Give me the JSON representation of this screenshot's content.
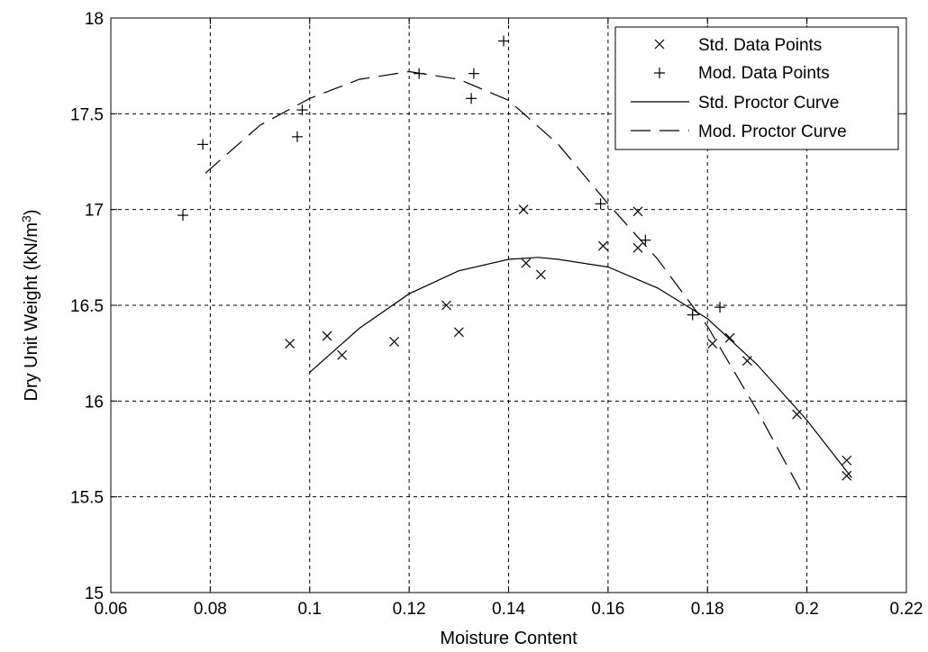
{
  "chart_data": {
    "type": "scatter",
    "xlabel": "Moisture Content",
    "ylabel": "Dry Unit Weight (kN/m",
    "ylabel_sup": "3",
    "ylabel_end": ")",
    "xlim": [
      0.06,
      0.22
    ],
    "ylim": [
      15,
      18
    ],
    "x_ticks": [
      0.06,
      0.08,
      0.1,
      0.12,
      0.14,
      0.16,
      0.18,
      0.2,
      0.22
    ],
    "x_tick_labels": [
      "0.06",
      "0.08",
      "0.1",
      "0.12",
      "0.14",
      "0.16",
      "0.18",
      "0.2",
      "0.22"
    ],
    "y_ticks": [
      15,
      15.5,
      16,
      16.5,
      17,
      17.5,
      18
    ],
    "y_tick_labels": [
      "15",
      "15.5",
      "16",
      "16.5",
      "17",
      "17.5",
      "18"
    ],
    "grid": true,
    "legend_position": "top-right",
    "series": [
      {
        "name": "Std. Data Points",
        "kind": "x-marker",
        "x": [
          0.096,
          0.1035,
          0.1065,
          0.117,
          0.1275,
          0.13,
          0.143,
          0.1435,
          0.1465,
          0.159,
          0.166,
          0.166,
          0.181,
          0.1845,
          0.188,
          0.198,
          0.208,
          0.208
        ],
        "y": [
          16.3,
          16.34,
          16.24,
          16.31,
          16.5,
          16.36,
          17.0,
          16.72,
          16.66,
          16.81,
          16.8,
          16.99,
          16.3,
          16.33,
          16.21,
          15.93,
          15.69,
          15.61
        ]
      },
      {
        "name": "Mod. Data Points",
        "kind": "plus-marker",
        "x": [
          0.0745,
          0.0785,
          0.0975,
          0.0985,
          0.122,
          0.1325,
          0.133,
          0.139,
          0.1585,
          0.1675,
          0.177,
          0.1825
        ],
        "y": [
          16.97,
          17.34,
          17.38,
          17.52,
          17.71,
          17.58,
          17.71,
          17.88,
          17.03,
          16.84,
          16.45,
          16.49
        ]
      },
      {
        "name": "Std. Proctor Curve",
        "kind": "solid-line",
        "x": [
          0.1,
          0.11,
          0.12,
          0.13,
          0.14,
          0.146,
          0.15,
          0.16,
          0.17,
          0.18,
          0.19,
          0.2,
          0.209
        ],
        "y": [
          16.15,
          16.38,
          16.56,
          16.68,
          16.74,
          16.75,
          16.74,
          16.7,
          16.59,
          16.43,
          16.19,
          15.9,
          15.6
        ]
      },
      {
        "name": "Mod. Proctor Curve",
        "kind": "dashed-line",
        "x": [
          0.079,
          0.09,
          0.1,
          0.11,
          0.12,
          0.13,
          0.14,
          0.15,
          0.16,
          0.17,
          0.18,
          0.19,
          0.199
        ],
        "y": [
          17.19,
          17.44,
          17.58,
          17.68,
          17.72,
          17.68,
          17.57,
          17.34,
          17.03,
          16.74,
          16.39,
          15.95,
          15.52
        ]
      }
    ]
  }
}
